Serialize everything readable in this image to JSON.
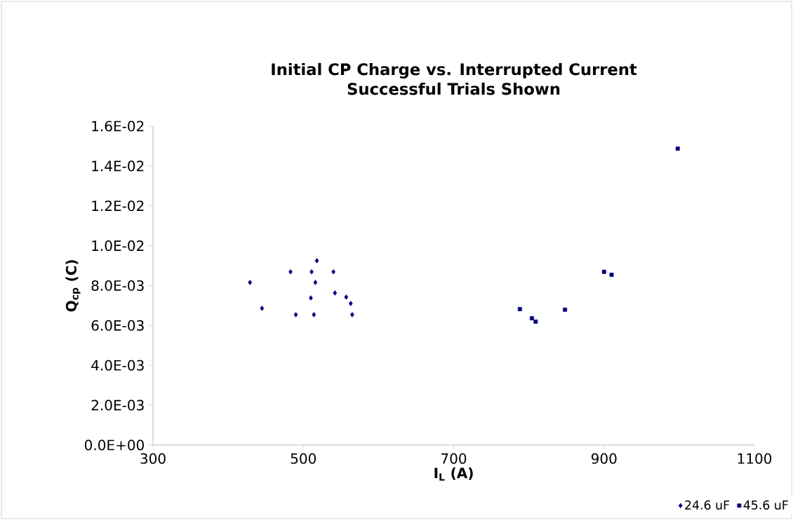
{
  "chart_data": {
    "type": "scatter",
    "title": "Initial CP Charge vs. Interrupted Current\nSuccessful Trials Shown",
    "xlabel": "I$_{L}$ (A)",
    "ylabel": "Q$_{cp}$ (C)",
    "xlim": [
      300,
      1100
    ],
    "xticks": [
      300,
      500,
      700,
      900,
      1100
    ],
    "ylim": [
      0,
      0.016
    ],
    "yticks": [
      {
        "value": 0,
        "label": "0.0E+00"
      },
      {
        "value": 0.002,
        "label": "2.0E-03"
      },
      {
        "value": 0.004,
        "label": "4.0E-03"
      },
      {
        "value": 0.006,
        "label": "6.0E-03"
      },
      {
        "value": 0.008,
        "label": "8.0E-03"
      },
      {
        "value": 0.01,
        "label": "1.0E-02"
      },
      {
        "value": 0.012,
        "label": "1.2E-02"
      },
      {
        "value": 0.014,
        "label": "1.4E-02"
      },
      {
        "value": 0.016,
        "label": "1.6E-02"
      }
    ],
    "grid": false,
    "legend": "bottom right",
    "series": [
      {
        "name": "24.6 uF",
        "color": "#000080",
        "marker": "diamond",
        "x": [
          429,
          445,
          483,
          490,
          511,
          510,
          516,
          518,
          514,
          540,
          542,
          557,
          563,
          565
        ],
        "values": [
          0.00816,
          0.00686,
          0.00869,
          0.00654,
          0.00869,
          0.00738,
          0.00816,
          0.00925,
          0.00654,
          0.00869,
          0.00763,
          0.00742,
          0.0071,
          0.00654
        ]
      },
      {
        "name": "45.6 uF",
        "color": "#000080",
        "marker": "square",
        "x": [
          788,
          804,
          809,
          848,
          900,
          910,
          998
        ],
        "values": [
          0.00682,
          0.00636,
          0.00619,
          0.00679,
          0.00869,
          0.00854,
          0.01487
        ]
      }
    ]
  }
}
